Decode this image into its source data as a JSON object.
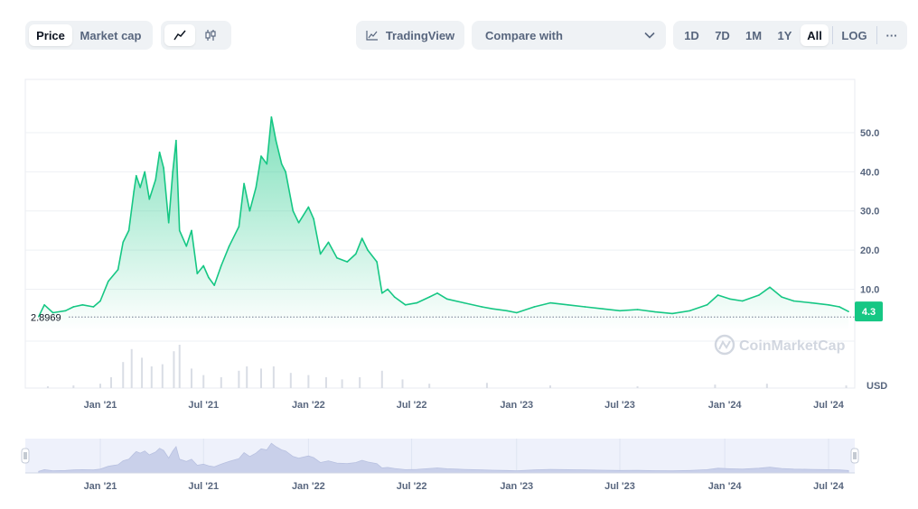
{
  "toolbar": {
    "metric_tabs": [
      {
        "label": "Price",
        "active": true
      },
      {
        "label": "Market cap",
        "active": false
      }
    ],
    "chart_type_icons": [
      {
        "icon": "line-chart-icon",
        "active": true
      },
      {
        "icon": "candlestick-icon",
        "active": false
      }
    ],
    "tradingview_label": "TradingView",
    "compare_label": "Compare with",
    "ranges": [
      {
        "label": "1D",
        "active": false
      },
      {
        "label": "7D",
        "active": false
      },
      {
        "label": "1M",
        "active": false
      },
      {
        "label": "1Y",
        "active": false
      },
      {
        "label": "All",
        "active": true
      }
    ],
    "log_label": "LOG",
    "more_label": "···"
  },
  "chart_data": {
    "type": "area",
    "x_tick_labels": [
      "Jan '21",
      "Jul '21",
      "Jan '22",
      "Jul '22",
      "Jan '23",
      "Jul '23",
      "Jan '24",
      "Jul '24"
    ],
    "y_tick_labels": [
      "10.0",
      "20.0",
      "30.0",
      "40.0",
      "50.0"
    ],
    "y_ticks": [
      10,
      20,
      30,
      40,
      50
    ],
    "ylim": [
      -0.5,
      59
    ],
    "unit_label": "USD",
    "watermark": "CoinMarketCap",
    "open_price_label": "2.8969",
    "open_price": 2.8969,
    "current_price_label": "4.3",
    "current_price": 4.3,
    "color_line": "#16c784",
    "color_fill": "#16c784",
    "series": [
      {
        "x": "2020-09-15",
        "y": 3.0
      },
      {
        "x": "2020-09-25",
        "y": 6.0
      },
      {
        "x": "2020-10-10",
        "y": 4.0
      },
      {
        "x": "2020-11-01",
        "y": 4.5
      },
      {
        "x": "2020-11-15",
        "y": 5.5
      },
      {
        "x": "2020-12-01",
        "y": 6.0
      },
      {
        "x": "2020-12-20",
        "y": 5.5
      },
      {
        "x": "2021-01-01",
        "y": 7.0
      },
      {
        "x": "2021-01-15",
        "y": 12.0
      },
      {
        "x": "2021-02-01",
        "y": 15.0
      },
      {
        "x": "2021-02-10",
        "y": 22.0
      },
      {
        "x": "2021-02-20",
        "y": 25.0
      },
      {
        "x": "2021-03-01",
        "y": 35.0
      },
      {
        "x": "2021-03-05",
        "y": 39.0
      },
      {
        "x": "2021-03-12",
        "y": 36.0
      },
      {
        "x": "2021-03-20",
        "y": 40.0
      },
      {
        "x": "2021-03-28",
        "y": 33.0
      },
      {
        "x": "2021-04-08",
        "y": 38.0
      },
      {
        "x": "2021-04-15",
        "y": 45.0
      },
      {
        "x": "2021-04-22",
        "y": 41.0
      },
      {
        "x": "2021-05-01",
        "y": 27.0
      },
      {
        "x": "2021-05-08",
        "y": 40.0
      },
      {
        "x": "2021-05-14",
        "y": 48.0
      },
      {
        "x": "2021-05-20",
        "y": 25.0
      },
      {
        "x": "2021-06-01",
        "y": 21.0
      },
      {
        "x": "2021-06-10",
        "y": 25.0
      },
      {
        "x": "2021-06-20",
        "y": 14.0
      },
      {
        "x": "2021-07-01",
        "y": 16.0
      },
      {
        "x": "2021-07-10",
        "y": 13.0
      },
      {
        "x": "2021-07-20",
        "y": 11.0
      },
      {
        "x": "2021-08-01",
        "y": 16.0
      },
      {
        "x": "2021-08-15",
        "y": 21.0
      },
      {
        "x": "2021-09-01",
        "y": 26.0
      },
      {
        "x": "2021-09-10",
        "y": 37.0
      },
      {
        "x": "2021-09-20",
        "y": 30.0
      },
      {
        "x": "2021-10-01",
        "y": 36.0
      },
      {
        "x": "2021-10-10",
        "y": 44.0
      },
      {
        "x": "2021-10-20",
        "y": 42.0
      },
      {
        "x": "2021-10-28",
        "y": 54.0
      },
      {
        "x": "2021-11-05",
        "y": 48.0
      },
      {
        "x": "2021-11-15",
        "y": 42.0
      },
      {
        "x": "2021-11-22",
        "y": 40.0
      },
      {
        "x": "2021-12-05",
        "y": 30.0
      },
      {
        "x": "2021-12-15",
        "y": 27.0
      },
      {
        "x": "2022-01-01",
        "y": 31.0
      },
      {
        "x": "2022-01-10",
        "y": 28.0
      },
      {
        "x": "2022-01-22",
        "y": 19.0
      },
      {
        "x": "2022-02-05",
        "y": 22.0
      },
      {
        "x": "2022-02-20",
        "y": 18.0
      },
      {
        "x": "2022-03-10",
        "y": 17.0
      },
      {
        "x": "2022-03-25",
        "y": 19.0
      },
      {
        "x": "2022-04-05",
        "y": 23.0
      },
      {
        "x": "2022-04-15",
        "y": 20.0
      },
      {
        "x": "2022-05-01",
        "y": 17.0
      },
      {
        "x": "2022-05-10",
        "y": 9.0
      },
      {
        "x": "2022-05-20",
        "y": 10.0
      },
      {
        "x": "2022-06-01",
        "y": 8.0
      },
      {
        "x": "2022-06-20",
        "y": 6.0
      },
      {
        "x": "2022-07-10",
        "y": 6.5
      },
      {
        "x": "2022-08-01",
        "y": 8.0
      },
      {
        "x": "2022-08-15",
        "y": 9.0
      },
      {
        "x": "2022-09-01",
        "y": 7.5
      },
      {
        "x": "2022-10-01",
        "y": 6.5
      },
      {
        "x": "2022-11-01",
        "y": 5.5
      },
      {
        "x": "2022-11-20",
        "y": 5.0
      },
      {
        "x": "2022-12-15",
        "y": 4.5
      },
      {
        "x": "2023-01-01",
        "y": 4.0
      },
      {
        "x": "2023-02-01",
        "y": 5.5
      },
      {
        "x": "2023-03-01",
        "y": 6.5
      },
      {
        "x": "2023-04-01",
        "y": 6.0
      },
      {
        "x": "2023-05-01",
        "y": 5.5
      },
      {
        "x": "2023-06-01",
        "y": 5.0
      },
      {
        "x": "2023-07-01",
        "y": 4.5
      },
      {
        "x": "2023-08-01",
        "y": 4.8
      },
      {
        "x": "2023-09-01",
        "y": 4.2
      },
      {
        "x": "2023-10-01",
        "y": 3.8
      },
      {
        "x": "2023-11-01",
        "y": 4.5
      },
      {
        "x": "2023-12-01",
        "y": 6.0
      },
      {
        "x": "2023-12-20",
        "y": 8.5
      },
      {
        "x": "2024-01-10",
        "y": 7.5
      },
      {
        "x": "2024-02-01",
        "y": 7.0
      },
      {
        "x": "2024-03-01",
        "y": 8.5
      },
      {
        "x": "2024-03-20",
        "y": 10.5
      },
      {
        "x": "2024-04-10",
        "y": 8.0
      },
      {
        "x": "2024-05-01",
        "y": 7.0
      },
      {
        "x": "2024-06-01",
        "y": 6.5
      },
      {
        "x": "2024-07-01",
        "y": 6.0
      },
      {
        "x": "2024-07-20",
        "y": 5.5
      },
      {
        "x": "2024-08-05",
        "y": 4.3
      }
    ],
    "volume": [
      {
        "x": "2020-10-01",
        "v": 0.04
      },
      {
        "x": "2020-11-15",
        "v": 0.06
      },
      {
        "x": "2021-01-01",
        "v": 0.1
      },
      {
        "x": "2021-01-20",
        "v": 0.25
      },
      {
        "x": "2021-02-10",
        "v": 0.6
      },
      {
        "x": "2021-02-25",
        "v": 0.9
      },
      {
        "x": "2021-03-15",
        "v": 0.7
      },
      {
        "x": "2021-04-01",
        "v": 0.5
      },
      {
        "x": "2021-04-20",
        "v": 0.55
      },
      {
        "x": "2021-05-10",
        "v": 0.85
      },
      {
        "x": "2021-05-20",
        "v": 1.0
      },
      {
        "x": "2021-06-10",
        "v": 0.45
      },
      {
        "x": "2021-07-01",
        "v": 0.3
      },
      {
        "x": "2021-08-01",
        "v": 0.25
      },
      {
        "x": "2021-09-01",
        "v": 0.4
      },
      {
        "x": "2021-09-15",
        "v": 0.5
      },
      {
        "x": "2021-10-10",
        "v": 0.45
      },
      {
        "x": "2021-11-01",
        "v": 0.5
      },
      {
        "x": "2021-12-01",
        "v": 0.35
      },
      {
        "x": "2022-01-01",
        "v": 0.3
      },
      {
        "x": "2022-02-01",
        "v": 0.25
      },
      {
        "x": "2022-03-01",
        "v": 0.2
      },
      {
        "x": "2022-04-01",
        "v": 0.25
      },
      {
        "x": "2022-05-10",
        "v": 0.4
      },
      {
        "x": "2022-06-15",
        "v": 0.2
      },
      {
        "x": "2022-08-01",
        "v": 0.1
      },
      {
        "x": "2022-11-10",
        "v": 0.12
      },
      {
        "x": "2023-03-01",
        "v": 0.06
      },
      {
        "x": "2023-08-01",
        "v": 0.04
      },
      {
        "x": "2023-12-15",
        "v": 0.08
      },
      {
        "x": "2024-03-15",
        "v": 0.1
      },
      {
        "x": "2024-08-01",
        "v": 0.06
      }
    ]
  }
}
